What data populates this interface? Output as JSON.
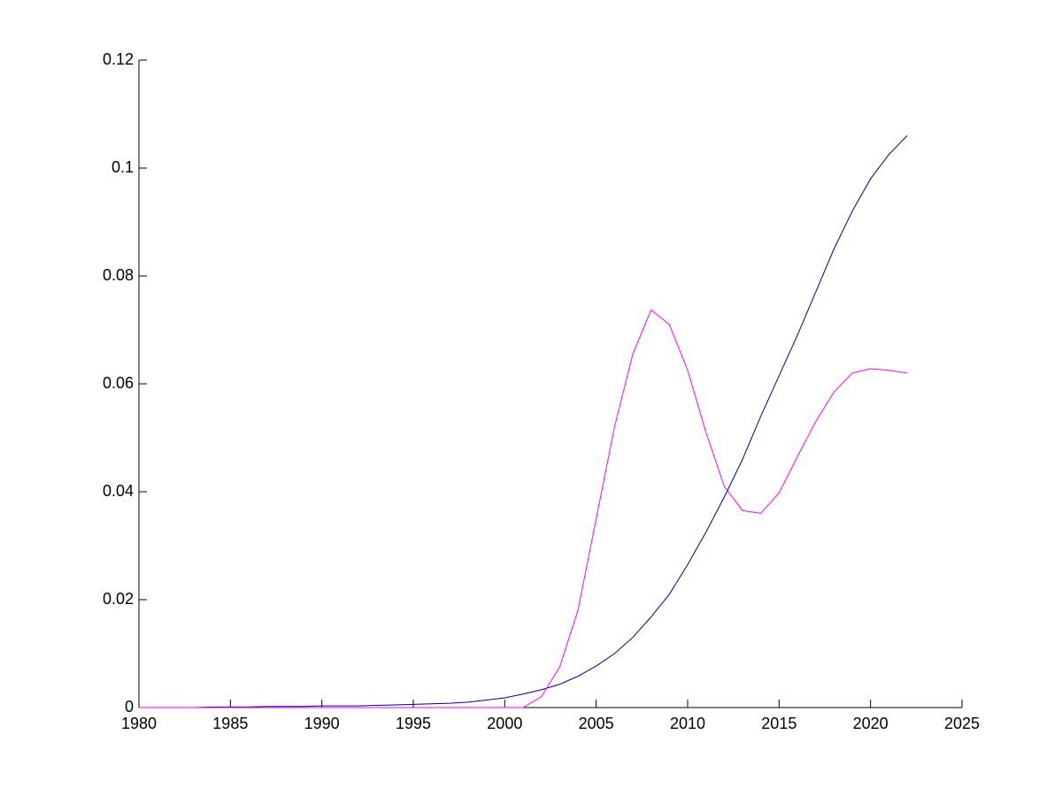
{
  "chart_data": {
    "type": "line",
    "x": [
      1980,
      1981,
      1982,
      1983,
      1984,
      1985,
      1986,
      1987,
      1988,
      1989,
      1990,
      1991,
      1992,
      1993,
      1994,
      1995,
      1996,
      1997,
      1998,
      1999,
      2000,
      2001,
      2002,
      2003,
      2004,
      2005,
      2006,
      2007,
      2008,
      2009,
      2010,
      2011,
      2012,
      2013,
      2014,
      2015,
      2016,
      2017,
      2018,
      2019,
      2020,
      2021,
      2022
    ],
    "series": [
      {
        "color": "#00008b",
        "values": [
          0,
          0,
          0,
          0,
          0.0001,
          0.0001,
          0.0001,
          0.0002,
          0.0002,
          0.0002,
          0.0003,
          0.0003,
          0.0003,
          0.0004,
          0.0005,
          0.0006,
          0.0007,
          0.0008,
          0.001,
          0.0014,
          0.0018,
          0.0025,
          0.0033,
          0.0043,
          0.0058,
          0.0077,
          0.01,
          0.013,
          0.0168,
          0.021,
          0.0265,
          0.0325,
          0.039,
          0.046,
          0.054,
          0.0615,
          0.069,
          0.077,
          0.085,
          0.092,
          0.098,
          0.1025,
          0.106
        ]
      },
      {
        "color": "#ff00ff",
        "values": [
          0,
          0,
          0,
          0,
          0,
          0,
          0,
          0,
          0,
          0,
          0,
          0,
          0,
          0,
          0,
          0,
          0,
          0,
          0,
          0,
          0,
          0,
          0.002,
          0.0075,
          0.018,
          0.035,
          0.052,
          0.0655,
          0.0737,
          0.071,
          0.0625,
          0.051,
          0.041,
          0.0365,
          0.036,
          0.0398,
          0.0465,
          0.053,
          0.0585,
          0.062,
          0.0628,
          0.0625,
          0.062
        ]
      }
    ],
    "xlim": [
      1980,
      2025
    ],
    "xticks": [
      1980,
      1985,
      1990,
      1995,
      2000,
      2005,
      2010,
      2015,
      2020,
      2025
    ],
    "ylim": [
      0,
      0.12
    ],
    "yticks": [
      0,
      0.02,
      0.04,
      0.06,
      0.08,
      0.1,
      0.12
    ]
  }
}
